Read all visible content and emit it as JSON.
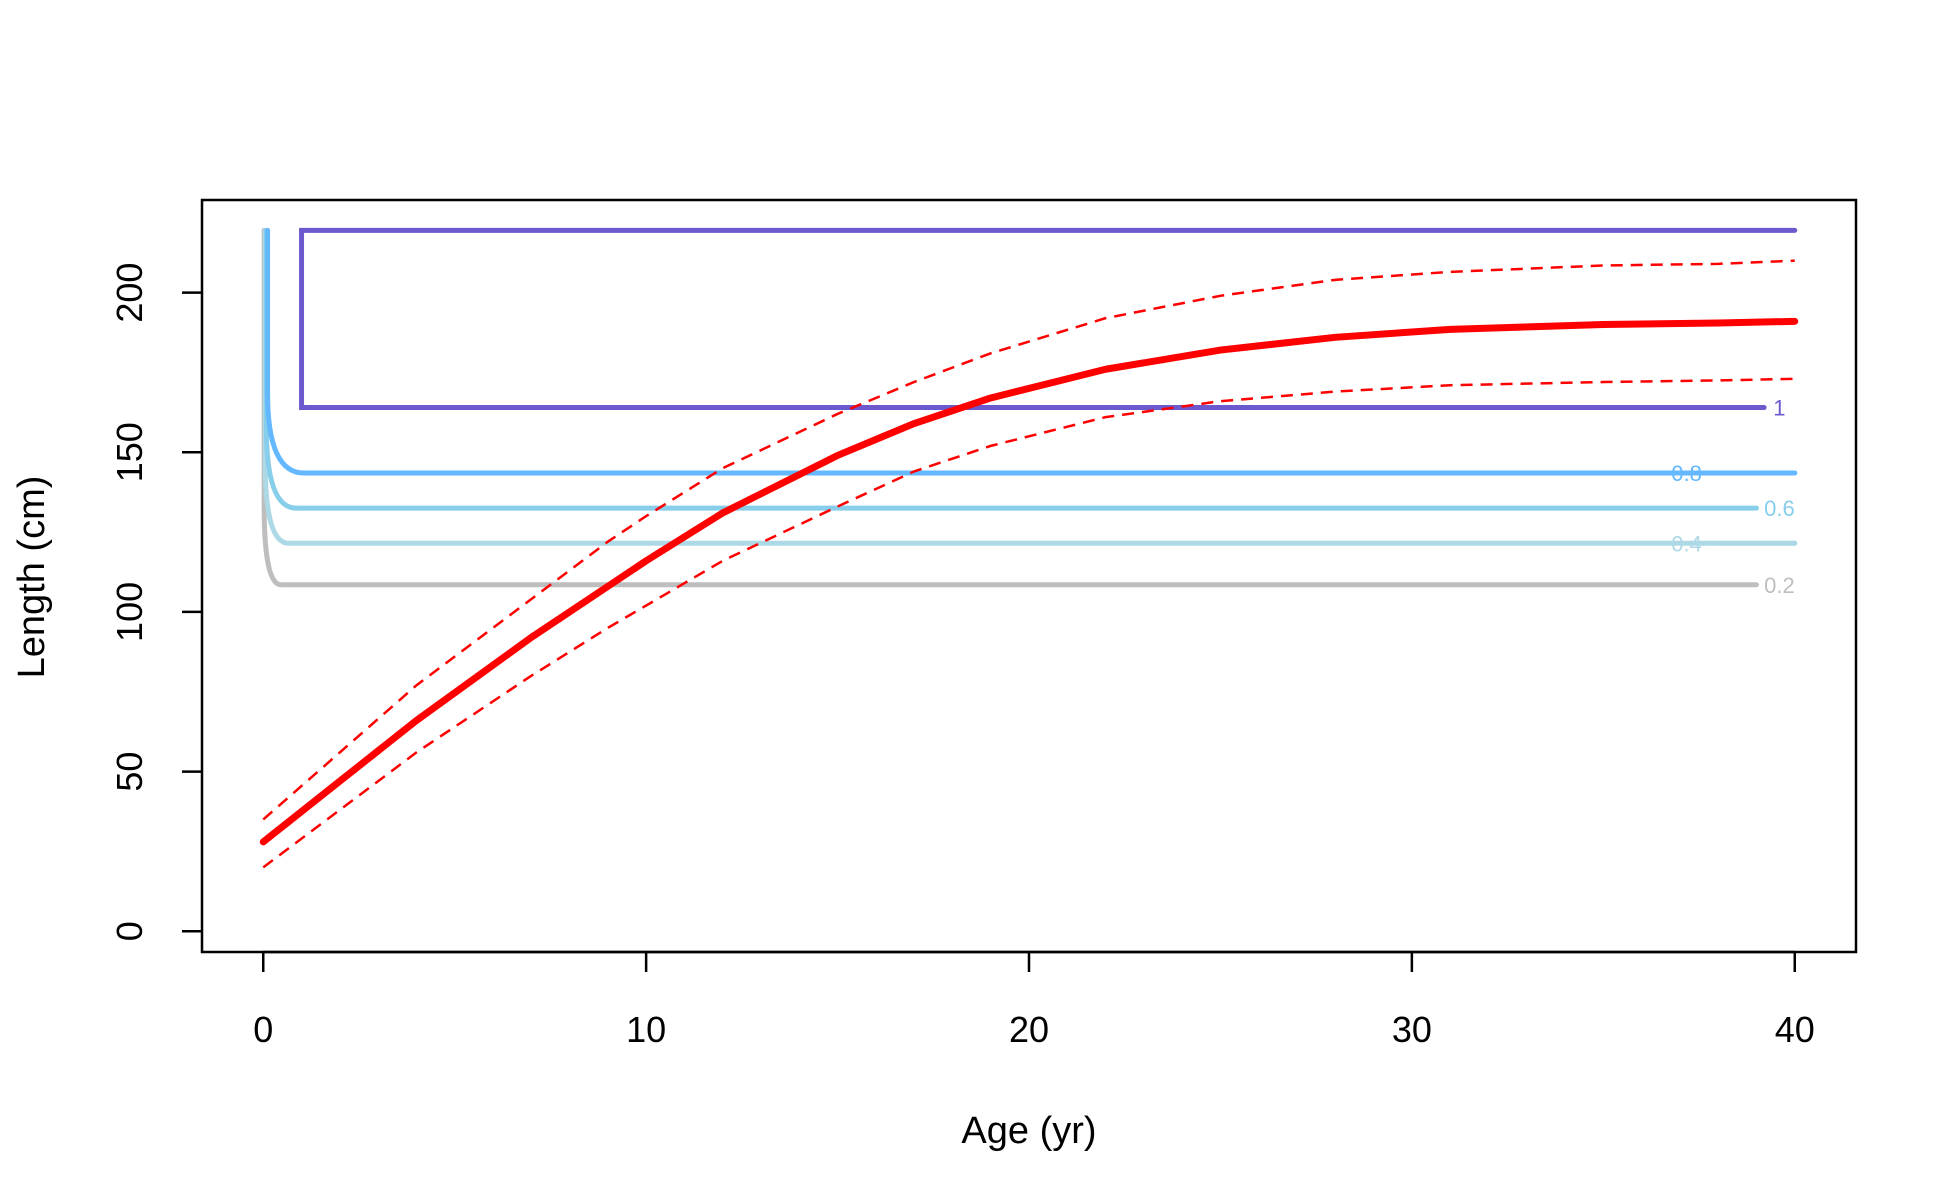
{
  "chart_data": {
    "type": "line",
    "xlabel": "Age (yr)",
    "ylabel": "Length (cm)",
    "xlim": [
      -1.6,
      41.6
    ],
    "ylim": [
      -6.5,
      229
    ],
    "xticks": [
      "0",
      "10",
      "20",
      "30",
      "40"
    ],
    "yticks": [
      "0",
      "50",
      "100",
      "150",
      "200"
    ],
    "grid": false,
    "growth_curve": {
      "color": "#ff0000",
      "x": [
        0,
        2,
        4,
        7,
        9,
        10,
        12,
        15,
        17,
        19,
        22,
        25,
        28,
        31,
        35,
        38,
        40
      ],
      "mean": [
        28,
        47,
        66,
        92,
        108,
        116,
        131,
        149,
        159,
        167,
        176,
        182,
        186,
        188.5,
        190,
        190.5,
        191
      ],
      "upper": [
        35,
        56,
        77,
        104,
        122,
        130,
        145,
        162,
        172,
        181,
        192,
        199,
        204,
        206.5,
        208.5,
        209,
        210
      ],
      "lower": [
        20,
        38,
        56,
        80,
        95,
        102,
        116,
        133,
        144,
        152,
        161,
        166,
        169,
        171,
        172,
        172.5,
        173
      ]
    },
    "contours": [
      {
        "label": "0.2",
        "color": "#bebebe",
        "x_start": 0.15,
        "x_end": 39.0,
        "level": 108.5,
        "label_x": 39.6
      },
      {
        "label": "0.4",
        "color": "#add8e6",
        "x_start": 0.35,
        "x_end": 40.0,
        "level": 121.5,
        "label_x": 36.6
      },
      {
        "label": "0.6",
        "color": "#87ceeb",
        "x_start": 0.55,
        "x_end": 39.0,
        "level": 132.5,
        "label_x": 39.6
      },
      {
        "label": "0.8",
        "color": "#63b8ff",
        "x_start": 0.75,
        "x_end": 40.0,
        "level": 143.5,
        "label_x": 36.6
      },
      {
        "label": "1",
        "color": "#6a5acd",
        "x_start": 1.0,
        "x_end": 39.2,
        "level": 164,
        "label_x": 39.6,
        "top": 219.5,
        "closed_to": 40.0
      }
    ],
    "contour_top": 219.5
  }
}
